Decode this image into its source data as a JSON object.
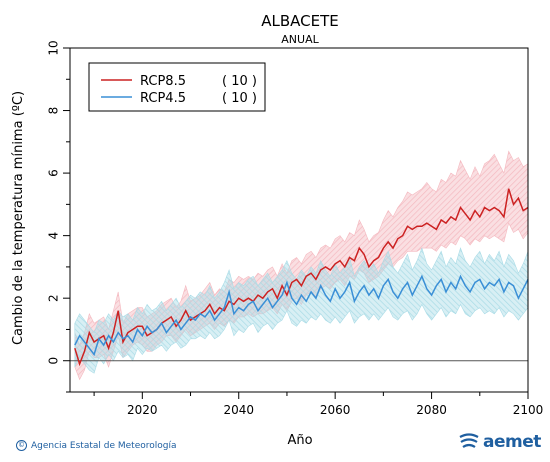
{
  "chart_data": {
    "type": "line",
    "title": "ALBACETE",
    "subtitle": "ANUAL",
    "xlabel": "Año",
    "ylabel": "Cambio de la temperatura mínima (ºC)",
    "xlim": [
      2005,
      2100
    ],
    "ylim": [
      -1,
      10
    ],
    "x_ticks": [
      2020,
      2040,
      2060,
      2080,
      2100
    ],
    "y_ticks": [
      0,
      2,
      4,
      6,
      8,
      10
    ],
    "grid": false,
    "legend_position": "top-left",
    "reference_line": 0,
    "series": [
      {
        "name": "RCP8.5",
        "count_label": "( 10 )",
        "color": "#cc2222",
        "band_color": "#f4b8bf",
        "x_start": 2006,
        "values": [
          0.4,
          -0.1,
          0.3,
          0.9,
          0.6,
          0.7,
          0.8,
          0.4,
          0.9,
          1.6,
          0.6,
          0.9,
          1.0,
          1.1,
          1.1,
          0.8,
          0.9,
          1.0,
          1.2,
          1.3,
          1.4,
          1.1,
          1.3,
          1.6,
          1.3,
          1.4,
          1.5,
          1.6,
          1.8,
          1.5,
          1.7,
          1.6,
          1.9,
          1.8,
          2.0,
          1.9,
          2.0,
          1.9,
          2.1,
          2.0,
          2.2,
          2.3,
          2.0,
          2.4,
          2.1,
          2.5,
          2.6,
          2.4,
          2.7,
          2.8,
          2.6,
          2.9,
          3.0,
          2.9,
          3.1,
          3.2,
          3.0,
          3.3,
          3.2,
          3.6,
          3.4,
          3.0,
          3.2,
          3.3,
          3.6,
          3.8,
          3.6,
          3.9,
          4.0,
          4.3,
          4.2,
          4.3,
          4.3,
          4.4,
          4.3,
          4.2,
          4.5,
          4.4,
          4.6,
          4.5,
          4.9,
          4.7,
          4.5,
          4.8,
          4.6,
          4.9,
          4.8,
          4.9,
          4.8,
          4.6,
          5.5,
          5.0,
          5.2,
          4.8,
          4.9
        ],
        "band_lower": [
          -0.2,
          -0.6,
          -0.3,
          0.3,
          0.1,
          0.1,
          0.2,
          -0.2,
          0.3,
          0.8,
          0.1,
          0.3,
          0.5,
          0.6,
          0.5,
          0.3,
          0.3,
          0.5,
          0.6,
          0.8,
          0.8,
          0.6,
          0.8,
          1.0,
          0.8,
          0.9,
          1.0,
          1.1,
          1.2,
          1.0,
          1.2,
          1.1,
          1.3,
          1.2,
          1.4,
          1.4,
          1.5,
          1.4,
          1.5,
          1.5,
          1.6,
          1.7,
          1.5,
          1.8,
          1.6,
          1.9,
          2.0,
          1.8,
          2.1,
          2.2,
          2.0,
          2.3,
          2.4,
          2.3,
          2.5,
          2.6,
          2.4,
          2.7,
          2.6,
          2.9,
          2.8,
          2.5,
          2.6,
          2.7,
          2.9,
          3.1,
          3.0,
          3.2,
          3.3,
          3.5,
          3.5,
          3.5,
          3.6,
          3.6,
          3.6,
          3.5,
          3.7,
          3.6,
          3.8,
          3.7,
          4.0,
          3.9,
          3.7,
          3.9,
          3.8,
          4.0,
          3.9,
          4.0,
          3.9,
          3.8,
          4.4,
          4.1,
          4.2,
          3.9,
          4.1
        ],
        "band_upper": [
          0.9,
          0.5,
          0.9,
          1.5,
          1.2,
          1.3,
          1.4,
          1.0,
          1.6,
          2.2,
          1.2,
          1.5,
          1.6,
          1.7,
          1.7,
          1.4,
          1.5,
          1.6,
          1.8,
          1.9,
          2.0,
          1.7,
          1.9,
          2.4,
          1.9,
          2.0,
          2.1,
          2.3,
          2.5,
          2.1,
          2.3,
          2.2,
          2.6,
          2.5,
          2.7,
          2.6,
          2.7,
          2.6,
          2.8,
          2.7,
          2.9,
          3.0,
          2.7,
          3.1,
          2.8,
          3.2,
          3.3,
          3.1,
          3.4,
          3.5,
          3.3,
          3.6,
          3.7,
          3.6,
          3.9,
          4.0,
          3.8,
          4.1,
          4.0,
          4.5,
          4.2,
          3.8,
          4.0,
          4.1,
          4.5,
          4.8,
          4.6,
          4.9,
          5.1,
          5.4,
          5.3,
          5.4,
          5.5,
          5.7,
          5.5,
          5.4,
          5.8,
          5.7,
          6.0,
          5.9,
          6.4,
          6.1,
          5.8,
          6.2,
          5.9,
          6.3,
          6.4,
          6.6,
          6.3,
          6.0,
          6.7,
          6.4,
          6.5,
          6.2,
          6.3
        ]
      },
      {
        "name": "RCP4.5",
        "count_label": "( 10 )",
        "color": "#3a8fd6",
        "band_color": "#a9dbe6",
        "x_start": 2006,
        "values": [
          0.5,
          0.8,
          0.6,
          0.4,
          0.2,
          0.7,
          0.5,
          0.8,
          0.6,
          0.9,
          0.7,
          0.8,
          0.6,
          1.0,
          0.8,
          1.1,
          0.9,
          1.0,
          1.2,
          0.9,
          1.1,
          1.3,
          1.0,
          1.2,
          1.4,
          1.3,
          1.5,
          1.4,
          1.6,
          1.3,
          1.5,
          1.7,
          2.2,
          1.5,
          1.7,
          1.6,
          1.8,
          1.9,
          1.6,
          1.8,
          2.0,
          1.7,
          1.9,
          2.1,
          2.5,
          2.0,
          1.8,
          2.1,
          1.9,
          2.2,
          2.0,
          2.4,
          2.1,
          1.9,
          2.3,
          2.0,
          2.2,
          2.5,
          1.9,
          2.2,
          2.4,
          2.1,
          2.3,
          2.0,
          2.4,
          2.6,
          2.2,
          2.0,
          2.3,
          2.5,
          2.1,
          2.4,
          2.7,
          2.3,
          2.1,
          2.4,
          2.6,
          2.2,
          2.5,
          2.3,
          2.7,
          2.4,
          2.2,
          2.5,
          2.6,
          2.3,
          2.5,
          2.4,
          2.6,
          2.2,
          2.5,
          2.4,
          2.0,
          2.3,
          2.6
        ],
        "band_lower": [
          -0.2,
          0.1,
          -0.1,
          -0.3,
          -0.4,
          0.1,
          -0.1,
          0.2,
          0.0,
          0.3,
          0.1,
          0.2,
          0.0,
          0.4,
          0.2,
          0.4,
          0.3,
          0.4,
          0.5,
          0.3,
          0.5,
          0.6,
          0.4,
          0.5,
          0.7,
          0.7,
          0.8,
          0.7,
          0.9,
          0.7,
          0.8,
          1.0,
          1.3,
          0.8,
          1.0,
          0.9,
          1.1,
          1.2,
          0.9,
          1.1,
          1.2,
          1.0,
          1.2,
          1.3,
          1.6,
          1.2,
          1.1,
          1.3,
          1.2,
          1.4,
          1.3,
          1.5,
          1.3,
          1.2,
          1.4,
          1.2,
          1.4,
          1.6,
          1.2,
          1.4,
          1.5,
          1.3,
          1.5,
          1.3,
          1.5,
          1.7,
          1.4,
          1.3,
          1.5,
          1.6,
          1.3,
          1.5,
          1.8,
          1.5,
          1.3,
          1.5,
          1.7,
          1.4,
          1.6,
          1.5,
          1.8,
          1.5,
          1.4,
          1.6,
          1.7,
          1.5,
          1.6,
          1.5,
          1.7,
          1.4,
          1.6,
          1.5,
          1.3,
          1.5,
          1.7
        ],
        "band_upper": [
          1.2,
          1.5,
          1.3,
          1.1,
          0.9,
          1.3,
          1.2,
          1.5,
          1.3,
          1.6,
          1.4,
          1.5,
          1.3,
          1.7,
          1.5,
          1.8,
          1.6,
          1.7,
          1.9,
          1.6,
          1.8,
          2.0,
          1.7,
          1.9,
          2.1,
          2.0,
          2.2,
          2.1,
          2.4,
          2.0,
          2.2,
          2.5,
          2.9,
          2.3,
          2.5,
          2.4,
          2.6,
          2.7,
          2.4,
          2.6,
          2.8,
          2.5,
          2.7,
          2.9,
          3.2,
          2.8,
          2.6,
          2.9,
          2.7,
          3.0,
          2.8,
          3.2,
          2.9,
          2.7,
          3.1,
          2.8,
          3.0,
          3.3,
          2.7,
          3.0,
          3.2,
          2.9,
          3.1,
          2.8,
          3.2,
          3.5,
          3.0,
          2.8,
          3.1,
          3.4,
          2.9,
          3.2,
          3.6,
          3.1,
          2.9,
          3.2,
          3.5,
          3.0,
          3.3,
          3.1,
          3.6,
          3.2,
          3.0,
          3.3,
          3.5,
          3.1,
          3.4,
          3.2,
          3.5,
          3.0,
          3.4,
          3.2,
          2.8,
          3.1,
          3.5
        ]
      }
    ]
  },
  "footer": {
    "copyright_symbol": "©",
    "agency": "Agencia Estatal de Meteorología",
    "logo_text": "aemet"
  }
}
